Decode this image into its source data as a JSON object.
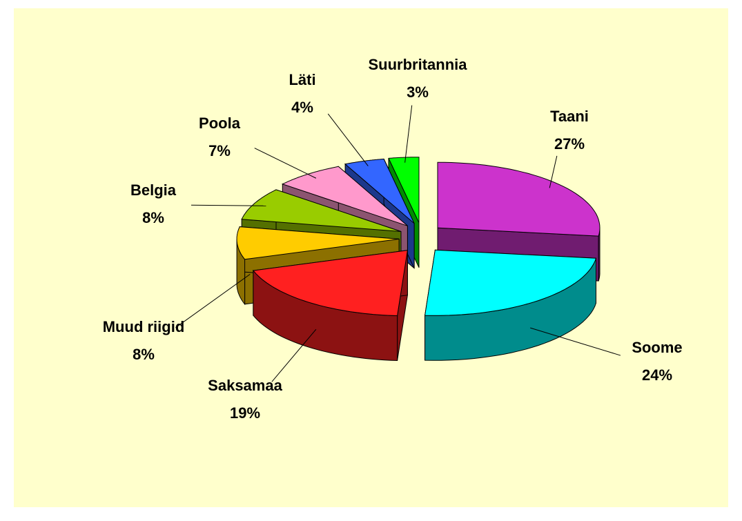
{
  "chart_data": {
    "type": "pie",
    "categories": [
      "Taani",
      "Soome",
      "Saksamaa",
      "Muud riigid",
      "Belgia",
      "Poola",
      "Läti",
      "Suurbritannia"
    ],
    "values": [
      27,
      24,
      19,
      8,
      8,
      7,
      4,
      3
    ],
    "value_labels": [
      "27%",
      "24%",
      "19%",
      "8%",
      "8%",
      "7%",
      "4%",
      "3%"
    ],
    "colors": [
      "#cc33cc",
      "#00ffff",
      "#ff2020",
      "#ffcc00",
      "#99cc00",
      "#ff99cc",
      "#3366ff",
      "#00ff00"
    ]
  }
}
